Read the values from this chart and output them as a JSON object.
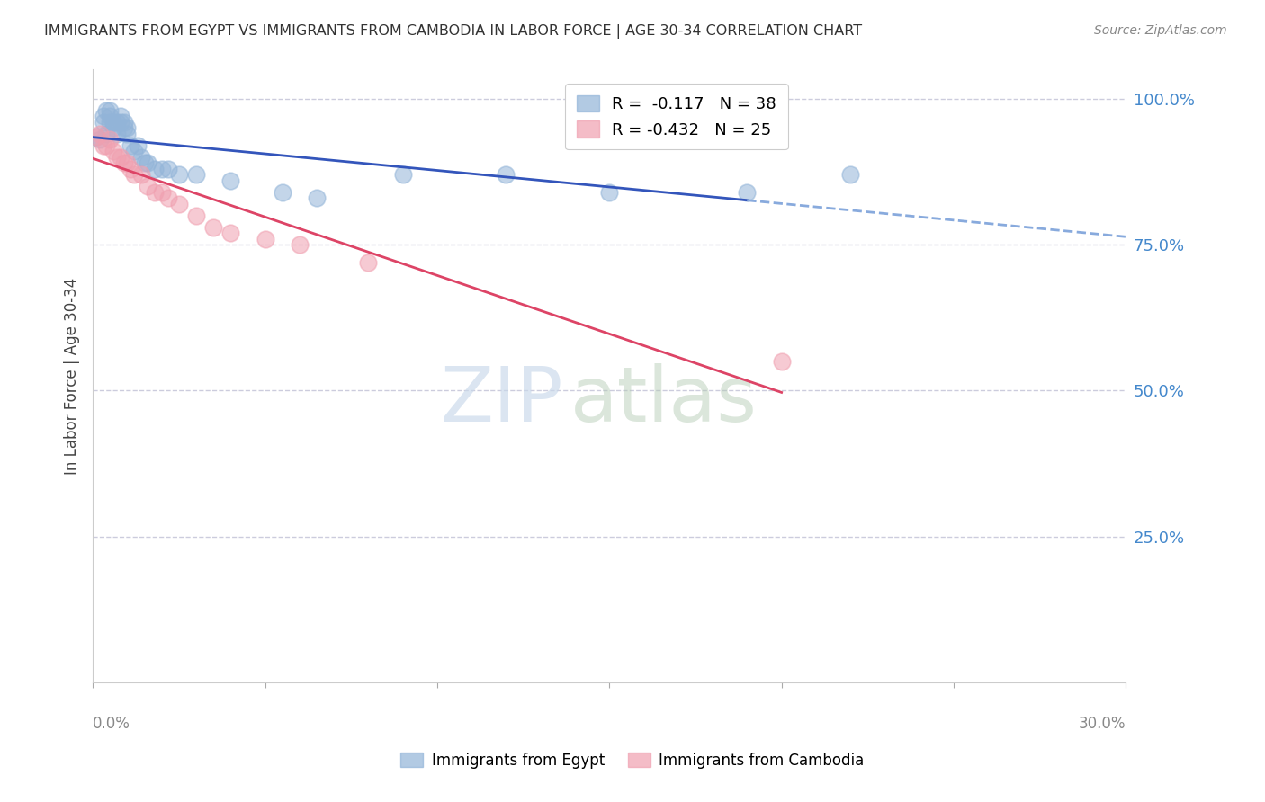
{
  "title": "IMMIGRANTS FROM EGYPT VS IMMIGRANTS FROM CAMBODIA IN LABOR FORCE | AGE 30-34 CORRELATION CHART",
  "source": "Source: ZipAtlas.com",
  "ylabel": "In Labor Force | Age 30-34",
  "ytick_labels": [
    "100.0%",
    "75.0%",
    "50.0%",
    "25.0%"
  ],
  "ytick_values": [
    1.0,
    0.75,
    0.5,
    0.25
  ],
  "legend_egypt_r": "-0.117",
  "legend_egypt_n": "38",
  "legend_cambodia_r": "-0.432",
  "legend_cambodia_n": "25",
  "egypt_color": "#92b4d8",
  "cambodia_color": "#f0a0b0",
  "egypt_line_color": "#3355bb",
  "cambodia_line_color": "#dd4466",
  "dashed_line_color": "#88aadd",
  "grid_color": "#ccccdd",
  "right_label_color": "#4488cc",
  "background_color": "#ffffff",
  "egypt_x": [
    0.001,
    0.002,
    0.003,
    0.003,
    0.004,
    0.004,
    0.005,
    0.005,
    0.005,
    0.006,
    0.006,
    0.007,
    0.007,
    0.008,
    0.008,
    0.009,
    0.009,
    0.01,
    0.01,
    0.011,
    0.012,
    0.013,
    0.014,
    0.015,
    0.016,
    0.018,
    0.02,
    0.022,
    0.025,
    0.03,
    0.04,
    0.055,
    0.065,
    0.09,
    0.12,
    0.15,
    0.19,
    0.22
  ],
  "egypt_y": [
    0.935,
    0.93,
    0.96,
    0.97,
    0.94,
    0.98,
    0.96,
    0.97,
    0.98,
    0.95,
    0.96,
    0.94,
    0.96,
    0.96,
    0.97,
    0.95,
    0.96,
    0.94,
    0.95,
    0.92,
    0.91,
    0.92,
    0.9,
    0.89,
    0.89,
    0.88,
    0.88,
    0.88,
    0.87,
    0.87,
    0.86,
    0.84,
    0.83,
    0.87,
    0.87,
    0.84,
    0.84,
    0.87
  ],
  "cambodia_x": [
    0.001,
    0.002,
    0.003,
    0.004,
    0.005,
    0.006,
    0.007,
    0.008,
    0.009,
    0.01,
    0.011,
    0.012,
    0.014,
    0.016,
    0.018,
    0.02,
    0.022,
    0.025,
    0.03,
    0.035,
    0.04,
    0.05,
    0.06,
    0.08,
    0.2
  ],
  "cambodia_y": [
    0.935,
    0.94,
    0.92,
    0.92,
    0.93,
    0.91,
    0.9,
    0.9,
    0.89,
    0.89,
    0.88,
    0.87,
    0.87,
    0.85,
    0.84,
    0.84,
    0.83,
    0.82,
    0.8,
    0.78,
    0.77,
    0.76,
    0.75,
    0.72,
    0.55
  ],
  "xmin": 0.0,
  "xmax": 0.3,
  "ymin": 0.0,
  "ymax": 1.05,
  "egypt_line_xmax_solid": 0.19,
  "watermark_zip": "ZIP",
  "watermark_atlas": "atlas"
}
